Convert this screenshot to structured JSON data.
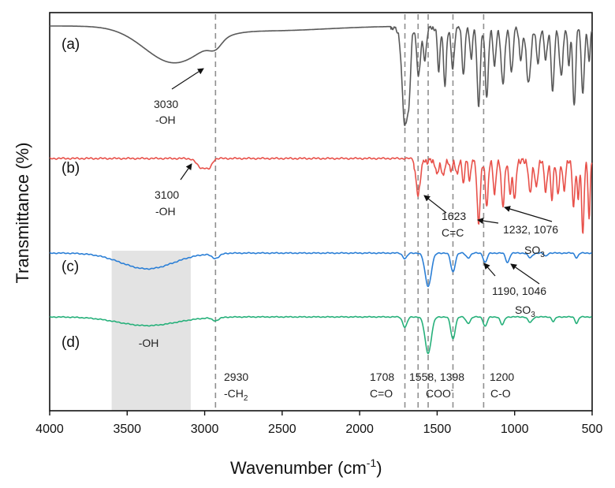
{
  "chart_data": {
    "type": "line",
    "title": "",
    "xlabel_main": "Wavenumber (cm",
    "xlabel_sup": "-1",
    "xlabel_end": ")",
    "ylabel": "Transmittance (%)",
    "xlim": [
      4000,
      500
    ],
    "x_reversed": true,
    "xticks": [
      "4000",
      "3500",
      "3000",
      "2500",
      "2000",
      "1500",
      "1000",
      "500"
    ],
    "y_ticks_shown": false,
    "series": [
      {
        "name": "(a)",
        "color": "#595959",
        "baseline_offset": 0,
        "note": "stacked spectrum"
      },
      {
        "name": "(b)",
        "color": "#e8514a",
        "baseline_offset": 1,
        "note": "stacked spectrum"
      },
      {
        "name": "(c)",
        "color": "#2b7fd6",
        "baseline_offset": 2,
        "note": "stacked spectrum"
      },
      {
        "name": "(d)",
        "color": "#26b07a",
        "baseline_offset": 3,
        "note": "stacked spectrum"
      }
    ],
    "reference_lines": [
      2930,
      1708,
      1623,
      1558,
      1398,
      1200
    ],
    "shaded_region": {
      "from": 3600,
      "to": 3090,
      "label": "-OH"
    },
    "annotations": {
      "a_peak": {
        "value": "3030",
        "group": "-OH"
      },
      "b_peak": {
        "value": "3100",
        "group": "-OH"
      },
      "b_cc": {
        "value": "1623",
        "group": "C=C"
      },
      "b_so3": {
        "value": "1232, 1076",
        "group": "SO",
        "group_sub": "3"
      },
      "c_so3": {
        "value": "1190, 1046",
        "group": "SO",
        "group_sub": "3"
      },
      "ch2": {
        "value": "2930",
        "group": "-CH",
        "group_sub": "2"
      },
      "co_carbonyl": {
        "value": "1708",
        "group": "C=O"
      },
      "coo": {
        "value": "1558, 1398",
        "group": "COO",
        "group_sup": "-"
      },
      "c_o": {
        "value": "1200",
        "group": "C-O"
      }
    }
  }
}
